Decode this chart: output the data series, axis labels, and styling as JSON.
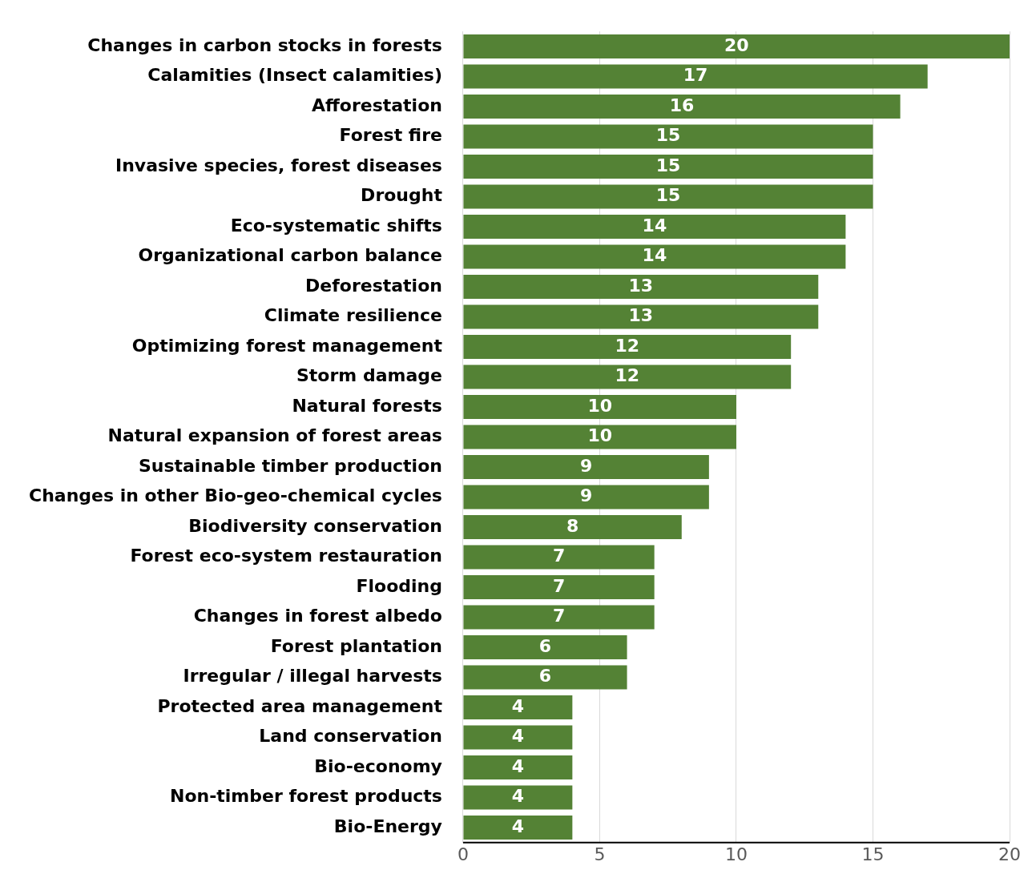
{
  "chart_data": {
    "type": "bar",
    "orientation": "horizontal",
    "categories": [
      "Changes in carbon stocks in forests",
      "Calamities (Insect calamities)",
      "Afforestation",
      "Forest fire",
      "Invasive species, forest diseases",
      "Drought",
      "Eco-systematic shifts",
      "Organizational carbon balance",
      "Deforestation",
      "Climate resilience",
      "Optimizing forest management",
      "Storm damage",
      "Natural forests",
      "Natural expansion of forest areas",
      "Sustainable timber production",
      "Changes in other Bio-geo-chemical cycles",
      "Biodiversity conservation",
      "Forest eco-system restauration",
      "Flooding",
      "Changes in forest albedo",
      "Forest plantation",
      "Irregular / illegal harvests",
      "Protected area management",
      "Land conservation",
      "Bio-economy",
      "Non-timber forest products",
      "Bio-Energy"
    ],
    "values": [
      20,
      17,
      16,
      15,
      15,
      15,
      14,
      14,
      13,
      13,
      12,
      12,
      10,
      10,
      9,
      9,
      8,
      7,
      7,
      7,
      6,
      6,
      4,
      4,
      4,
      4,
      4
    ],
    "color": "#548235",
    "xlim": [
      0,
      20
    ],
    "xticks": [
      0,
      5,
      10,
      15,
      20
    ],
    "grid": "x",
    "data_labels": true
  }
}
